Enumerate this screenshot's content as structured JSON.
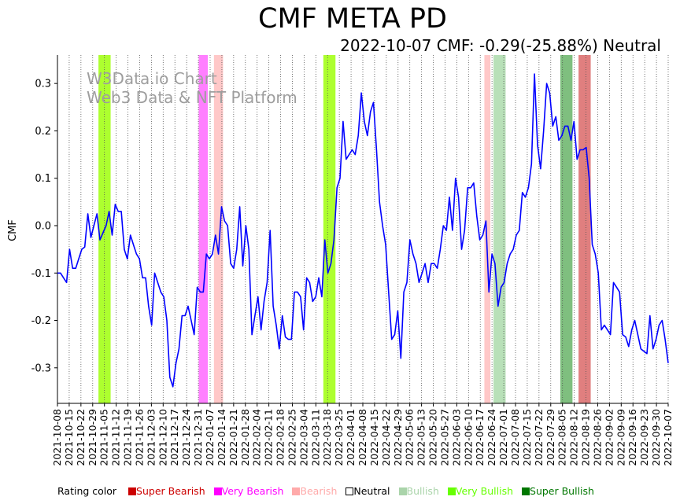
{
  "chart_data": {
    "type": "line",
    "title": "CMF META PD",
    "subtitle": "2022-10-07 CMF: -0.29(-25.88%) Neutral",
    "ylabel": "CMF",
    "xlabel": "",
    "ylim": [
      -0.375,
      0.36
    ],
    "y_ticks": [
      -0.3,
      -0.2,
      -0.1,
      0.0,
      0.1,
      0.2,
      0.3
    ],
    "x_ticks": [
      "2021-10-08",
      "2021-10-15",
      "2021-10-22",
      "2021-10-29",
      "2021-11-05",
      "2021-11-12",
      "2021-11-19",
      "2021-11-26",
      "2021-12-03",
      "2021-12-10",
      "2021-12-17",
      "2021-12-24",
      "2021-12-31",
      "2022-01-07",
      "2022-01-14",
      "2022-01-21",
      "2022-01-28",
      "2022-02-04",
      "2022-02-11",
      "2022-02-18",
      "2022-02-25",
      "2022-03-04",
      "2022-03-11",
      "2022-03-18",
      "2022-03-25",
      "2022-04-01",
      "2022-04-08",
      "2022-04-15",
      "2022-04-22",
      "2022-04-29",
      "2022-05-06",
      "2022-05-13",
      "2022-05-20",
      "2022-05-27",
      "2022-06-03",
      "2022-06-10",
      "2022-06-17",
      "2022-06-24",
      "2022-07-01",
      "2022-07-08",
      "2022-07-15",
      "2022-07-22",
      "2022-07-29",
      "2022-08-05",
      "2022-08-12",
      "2022-08-19",
      "2022-08-26",
      "2022-09-02",
      "2022-09-09",
      "2022-09-16",
      "2022-09-23",
      "2022-09-30",
      "2022-10-07"
    ],
    "grid": "vertical dotted",
    "watermark": [
      "W3Data.io Chart",
      "Web3 Data & NFT Platform"
    ],
    "line_color": "#0000ff",
    "series": [
      {
        "values": [
          [
            0,
            -0.1
          ],
          [
            1,
            -0.1
          ],
          [
            2,
            -0.11
          ],
          [
            3,
            -0.12
          ],
          [
            4,
            -0.05
          ],
          [
            5,
            -0.09
          ],
          [
            6,
            -0.09
          ],
          [
            7,
            -0.07
          ],
          [
            8,
            -0.05
          ],
          [
            9,
            -0.045
          ],
          [
            10,
            0.025
          ],
          [
            11,
            -0.025
          ],
          [
            12,
            0.0
          ],
          [
            13,
            0.025
          ],
          [
            14,
            -0.03
          ],
          [
            15,
            -0.015
          ],
          [
            16,
            0.0
          ],
          [
            17,
            0.03
          ],
          [
            18,
            -0.02
          ],
          [
            19,
            0.045
          ],
          [
            20,
            0.03
          ],
          [
            21,
            0.03
          ],
          [
            22,
            -0.05
          ],
          [
            23,
            -0.07
          ],
          [
            24,
            -0.02
          ],
          [
            25,
            -0.04
          ],
          [
            26,
            -0.06
          ],
          [
            27,
            -0.07
          ],
          [
            28,
            -0.11
          ],
          [
            29,
            -0.11
          ],
          [
            30,
            -0.17
          ],
          [
            31,
            -0.21
          ],
          [
            32,
            -0.1
          ],
          [
            33,
            -0.12
          ],
          [
            34,
            -0.14
          ],
          [
            35,
            -0.15
          ],
          [
            36,
            -0.2
          ],
          [
            37,
            -0.32
          ],
          [
            38,
            -0.34
          ],
          [
            39,
            -0.29
          ],
          [
            40,
            -0.26
          ],
          [
            41,
            -0.19
          ],
          [
            42,
            -0.19
          ],
          [
            43,
            -0.17
          ],
          [
            44,
            -0.2
          ],
          [
            45,
            -0.23
          ],
          [
            46,
            -0.13
          ],
          [
            47,
            -0.14
          ],
          [
            48,
            -0.14
          ],
          [
            49,
            -0.06
          ],
          [
            50,
            -0.07
          ],
          [
            51,
            -0.06
          ],
          [
            52,
            -0.02
          ],
          [
            53,
            -0.06
          ],
          [
            54,
            0.04
          ],
          [
            55,
            0.01
          ],
          [
            56,
            0.0
          ],
          [
            57,
            -0.08
          ],
          [
            58,
            -0.09
          ],
          [
            59,
            -0.05
          ],
          [
            60,
            0.04
          ],
          [
            61,
            -0.085
          ],
          [
            62,
            0.0
          ],
          [
            63,
            -0.05
          ],
          [
            64,
            -0.23
          ],
          [
            65,
            -0.19
          ],
          [
            66,
            -0.15
          ],
          [
            67,
            -0.22
          ],
          [
            68,
            -0.16
          ],
          [
            69,
            -0.12
          ],
          [
            70,
            -0.01
          ],
          [
            71,
            -0.17
          ],
          [
            72,
            -0.21
          ],
          [
            73,
            -0.26
          ],
          [
            74,
            -0.19
          ],
          [
            75,
            -0.235
          ],
          [
            76,
            -0.24
          ],
          [
            77,
            -0.24
          ],
          [
            78,
            -0.14
          ],
          [
            79,
            -0.14
          ],
          [
            80,
            -0.15
          ],
          [
            81,
            -0.22
          ],
          [
            82,
            -0.11
          ],
          [
            83,
            -0.12
          ],
          [
            84,
            -0.16
          ],
          [
            85,
            -0.15
          ],
          [
            86,
            -0.11
          ],
          [
            87,
            -0.15
          ],
          [
            88,
            -0.03
          ],
          [
            89,
            -0.1
          ],
          [
            90,
            -0.08
          ],
          [
            91,
            -0.03
          ],
          [
            92,
            0.08
          ],
          [
            93,
            0.1
          ],
          [
            94,
            0.22
          ],
          [
            95,
            0.14
          ],
          [
            96,
            0.15
          ],
          [
            97,
            0.16
          ],
          [
            98,
            0.15
          ],
          [
            99,
            0.19
          ],
          [
            100,
            0.28
          ],
          [
            101,
            0.22
          ],
          [
            102,
            0.19
          ],
          [
            103,
            0.24
          ],
          [
            104,
            0.26
          ],
          [
            105,
            0.16
          ],
          [
            106,
            0.05
          ],
          [
            107,
            0.0
          ],
          [
            108,
            -0.04
          ],
          [
            109,
            -0.14
          ],
          [
            110,
            -0.24
          ],
          [
            111,
            -0.23
          ],
          [
            112,
            -0.18
          ],
          [
            113,
            -0.28
          ],
          [
            114,
            -0.14
          ],
          [
            115,
            -0.12
          ],
          [
            116,
            -0.03
          ],
          [
            117,
            -0.06
          ],
          [
            118,
            -0.08
          ],
          [
            119,
            -0.12
          ],
          [
            120,
            -0.1
          ],
          [
            121,
            -0.08
          ],
          [
            122,
            -0.12
          ],
          [
            123,
            -0.08
          ],
          [
            124,
            -0.08
          ],
          [
            125,
            -0.09
          ],
          [
            126,
            -0.05
          ],
          [
            127,
            0.0
          ],
          [
            128,
            -0.01
          ],
          [
            129,
            0.06
          ],
          [
            130,
            -0.01
          ],
          [
            131,
            0.1
          ],
          [
            132,
            0.06
          ],
          [
            133,
            -0.05
          ],
          [
            134,
            -0.01
          ],
          [
            135,
            0.08
          ],
          [
            136,
            0.08
          ],
          [
            137,
            0.09
          ],
          [
            138,
            0.02
          ],
          [
            139,
            -0.03
          ],
          [
            140,
            -0.02
          ],
          [
            141,
            0.01
          ],
          [
            142,
            -0.14
          ],
          [
            143,
            -0.06
          ],
          [
            144,
            -0.08
          ],
          [
            145,
            -0.17
          ],
          [
            146,
            -0.13
          ],
          [
            147,
            -0.12
          ],
          [
            148,
            -0.08
          ],
          [
            149,
            -0.06
          ],
          [
            150,
            -0.05
          ],
          [
            151,
            -0.02
          ],
          [
            152,
            -0.01
          ],
          [
            153,
            0.07
          ],
          [
            154,
            0.06
          ],
          [
            155,
            0.08
          ],
          [
            156,
            0.13
          ],
          [
            157,
            0.32
          ],
          [
            158,
            0.17
          ],
          [
            159,
            0.12
          ],
          [
            160,
            0.2
          ],
          [
            161,
            0.3
          ],
          [
            162,
            0.28
          ],
          [
            163,
            0.21
          ],
          [
            164,
            0.23
          ],
          [
            165,
            0.18
          ],
          [
            166,
            0.19
          ],
          [
            167,
            0.21
          ],
          [
            168,
            0.21
          ],
          [
            169,
            0.18
          ],
          [
            170,
            0.22
          ],
          [
            171,
            0.14
          ],
          [
            172,
            0.16
          ],
          [
            173,
            0.16
          ],
          [
            174,
            0.165
          ],
          [
            175,
            0.1
          ],
          [
            176,
            -0.04
          ],
          [
            177,
            -0.06
          ],
          [
            178,
            -0.1
          ],
          [
            179,
            -0.22
          ],
          [
            180,
            -0.21
          ],
          [
            181,
            -0.22
          ],
          [
            182,
            -0.23
          ],
          [
            183,
            -0.12
          ],
          [
            184,
            -0.13
          ],
          [
            185,
            -0.14
          ],
          [
            186,
            -0.23
          ],
          [
            187,
            -0.235
          ],
          [
            188,
            -0.255
          ],
          [
            189,
            -0.22
          ],
          [
            190,
            -0.2
          ],
          [
            191,
            -0.23
          ],
          [
            192,
            -0.26
          ],
          [
            193,
            -0.265
          ],
          [
            194,
            -0.27
          ],
          [
            195,
            -0.19
          ],
          [
            196,
            -0.26
          ],
          [
            197,
            -0.24
          ],
          [
            198,
            -0.21
          ],
          [
            199,
            -0.2
          ],
          [
            200,
            -0.24
          ],
          [
            201,
            -0.29
          ]
        ]
      }
    ],
    "highlight_bands": [
      {
        "from": 13.5,
        "to": 17.5,
        "color": "#adff2f"
      },
      {
        "from": 46.5,
        "to": 49.5,
        "color": "#ff7fff"
      },
      {
        "from": 51.5,
        "to": 54.5,
        "color": "#ffc8c8"
      },
      {
        "from": 87.5,
        "to": 91.5,
        "color": "#adff2f"
      },
      {
        "from": 140.5,
        "to": 142.5,
        "color": "#ffc8c8"
      },
      {
        "from": 143.5,
        "to": 147.5,
        "color": "#b8e0b8"
      },
      {
        "from": 165.5,
        "to": 169.5,
        "color": "#7fbf7f"
      },
      {
        "from": 171.5,
        "to": 175.5,
        "color": "#e07f7f"
      }
    ],
    "x_domain": [
      0,
      201
    ]
  },
  "legend": {
    "prefix": "Rating color",
    "items": [
      {
        "label": "Super Bearish",
        "color": "#cc0000"
      },
      {
        "label": "Very Bearish",
        "color": "#ff00ff"
      },
      {
        "label": "Bearish",
        "color": "#ffaaaa"
      },
      {
        "label": "Neutral",
        "color": "#000000",
        "hollow": true
      },
      {
        "label": "Bullish",
        "color": "#aad4aa"
      },
      {
        "label": "Very Bullish",
        "color": "#66ff00"
      },
      {
        "label": "Super Bullish",
        "color": "#007700"
      }
    ]
  }
}
